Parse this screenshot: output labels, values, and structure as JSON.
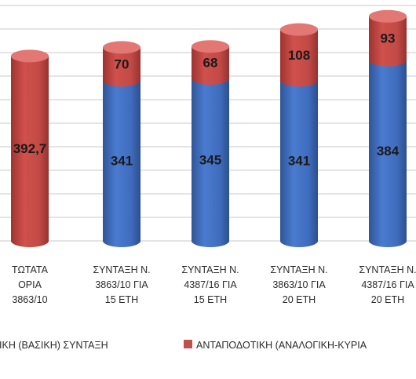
{
  "chart_data": {
    "type": "bar",
    "stacked": true,
    "categories": [
      [
        "ΤΩΤΑΤΑ",
        "ΟΡΙΑ",
        "3863/10"
      ],
      [
        "ΣΥΝΤΑΞΗ  Ν.",
        "3863/10 ΓΙΑ",
        "15 ΕΤΗ"
      ],
      [
        "ΣΥΝΤΑΞΗ  Ν.",
        "4387/16 ΓΙΑ",
        "15 ΕΤΗ"
      ],
      [
        "ΣΥΝΤΑΞΗ  Ν.",
        "3863/10 ΓΙΑ",
        "20 ΕΤΗ"
      ],
      [
        "ΣΥΝΤΑΞΗ  Ν.",
        "4387/16 ΓΙΑ",
        "20 ΕΤΗ"
      ]
    ],
    "series": [
      {
        "name": "ΝΙΚΗ  (ΒΑΣΙΚΗ) ΣΥΝΤΑΞΗ",
        "color": "#4472C4",
        "values": [
          null,
          341,
          345,
          341,
          384
        ],
        "labels": [
          "",
          "341",
          "345",
          "341",
          "384"
        ]
      },
      {
        "name": "ΑΝΤΑΠΟΔΟΤΙΚΗ  (ΑΝΑΛΟΓΙΚΗ-ΚΥΡΙΑ",
        "color": "#C0504D",
        "values": [
          392.7,
          70,
          68,
          108,
          93
        ],
        "labels": [
          "392,7",
          "70",
          "68",
          "108",
          "93"
        ]
      }
    ],
    "ylim": [
      0,
      500
    ],
    "grid": true,
    "legend_position": "bottom"
  }
}
